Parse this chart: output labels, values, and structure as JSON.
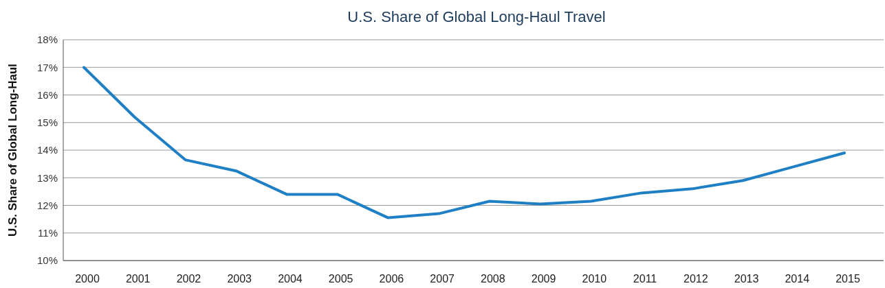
{
  "chart_data": {
    "type": "line",
    "title": "U.S. Share of Global Long-Haul Travel",
    "ylabel": "U.S. Share of Global Long-Haul",
    "categories": [
      "2000",
      "2001",
      "2002",
      "2003",
      "2004",
      "2005",
      "2006",
      "2007",
      "2008",
      "2009",
      "2010",
      "2011",
      "2012",
      "2013",
      "2014",
      "2015"
    ],
    "series": [
      {
        "color": "#1f7fc4",
        "values": [
          17.0,
          15.2,
          13.65,
          13.25,
          12.4,
          12.4,
          11.55,
          11.7,
          12.15,
          12.05,
          12.15,
          12.45,
          12.6,
          12.9,
          13.4,
          13.9
        ]
      }
    ],
    "ylim": [
      10,
      18
    ],
    "yticks": [
      {
        "value": 10,
        "label": "10%"
      },
      {
        "value": 11,
        "label": "11%"
      },
      {
        "value": 12,
        "label": "12%"
      },
      {
        "value": 13,
        "label": "13%"
      },
      {
        "value": 14,
        "label": "14%"
      },
      {
        "value": 15,
        "label": "15%"
      },
      {
        "value": 16,
        "label": "16%"
      },
      {
        "value": 17,
        "label": "17%"
      },
      {
        "value": 18,
        "label": "18%"
      }
    ],
    "grid": "y"
  }
}
